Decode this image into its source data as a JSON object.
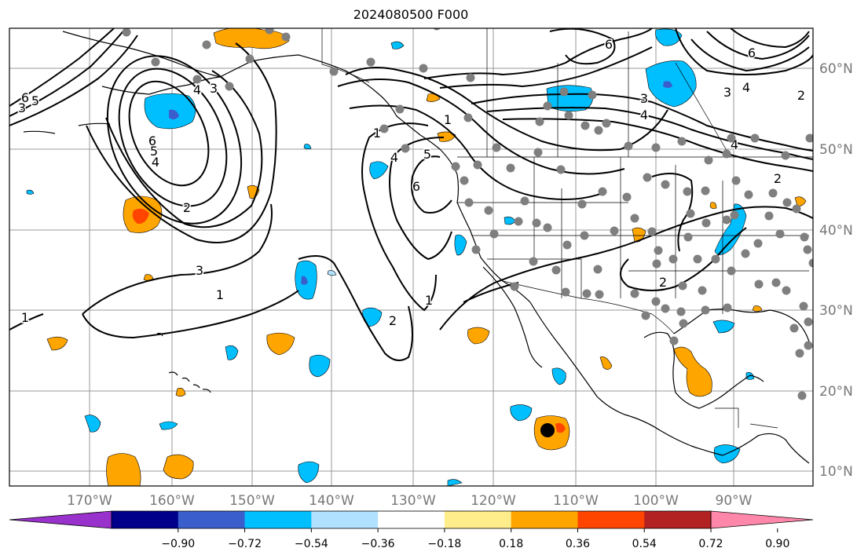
{
  "title": "2024080500 F000",
  "map": {
    "lon_labels": [
      "170°W",
      "160°W",
      "150°W",
      "140°W",
      "130°W",
      "120°W",
      "110°W",
      "100°W",
      "90°W"
    ],
    "lat_labels": [
      "60°N",
      "50°N",
      "40°N",
      "30°N",
      "20°N",
      "10°N"
    ],
    "contour_labels": [
      "6",
      "5",
      "3",
      "4",
      "5",
      "6",
      "4",
      "3",
      "2",
      "1",
      "3",
      "1",
      "1",
      "2",
      "6",
      "5",
      "4",
      "1",
      "6",
      "3",
      "4",
      "4",
      "6",
      "2",
      "3",
      "4",
      "1",
      "2",
      "2"
    ],
    "storm_marker": "black filled circle"
  },
  "colorbar": {
    "ticks": [
      "−0.90",
      "−0.72",
      "−0.54",
      "−0.36",
      "−0.18",
      "0.18",
      "0.36",
      "0.54",
      "0.72",
      "0.90"
    ],
    "colors": [
      "#9932cc",
      "#00008b",
      "#3a5fcd",
      "#00bfff",
      "#b0e2ff",
      "#ffffff",
      "#ffec8b",
      "#ffa500",
      "#ff4500",
      "#b22222",
      "#ff88aa"
    ]
  }
}
